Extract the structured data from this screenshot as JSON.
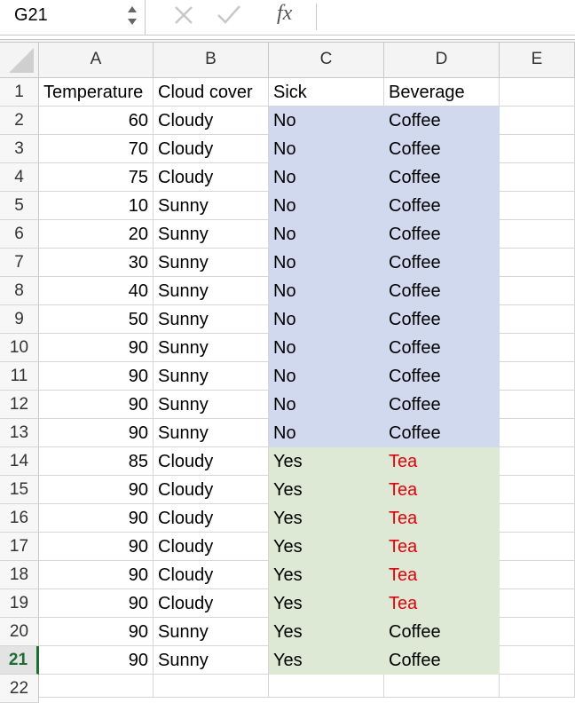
{
  "formula_bar": {
    "name_box": "G21",
    "function_label": "fx"
  },
  "column_headers": [
    "A",
    "B",
    "C",
    "D",
    "E"
  ],
  "row_numbers": [
    1,
    2,
    3,
    4,
    5,
    6,
    7,
    8,
    9,
    10,
    11,
    12,
    13,
    14,
    15,
    16,
    17,
    18,
    19,
    20,
    21,
    22
  ],
  "rows": [
    [
      "Temperature",
      "Cloud cover",
      "Sick",
      "Beverage"
    ],
    [
      60,
      "Cloudy",
      "No",
      "Coffee"
    ],
    [
      70,
      "Cloudy",
      "No",
      "Coffee"
    ],
    [
      75,
      "Cloudy",
      "No",
      "Coffee"
    ],
    [
      10,
      "Sunny",
      "No",
      "Coffee"
    ],
    [
      20,
      "Sunny",
      "No",
      "Coffee"
    ],
    [
      30,
      "Sunny",
      "No",
      "Coffee"
    ],
    [
      40,
      "Sunny",
      "No",
      "Coffee"
    ],
    [
      50,
      "Sunny",
      "No",
      "Coffee"
    ],
    [
      90,
      "Sunny",
      "No",
      "Coffee"
    ],
    [
      90,
      "Sunny",
      "No",
      "Coffee"
    ],
    [
      90,
      "Sunny",
      "No",
      "Coffee"
    ],
    [
      90,
      "Sunny",
      "No",
      "Coffee"
    ],
    [
      85,
      "Cloudy",
      "Yes",
      "Tea"
    ],
    [
      90,
      "Cloudy",
      "Yes",
      "Tea"
    ],
    [
      90,
      "Cloudy",
      "Yes",
      "Tea"
    ],
    [
      90,
      "Cloudy",
      "Yes",
      "Tea"
    ],
    [
      90,
      "Cloudy",
      "Yes",
      "Tea"
    ],
    [
      90,
      "Cloudy",
      "Yes",
      "Tea"
    ],
    [
      90,
      "Sunny",
      "Yes",
      "Coffee"
    ],
    [
      90,
      "Sunny",
      "Yes",
      "Coffee"
    ]
  ]
}
